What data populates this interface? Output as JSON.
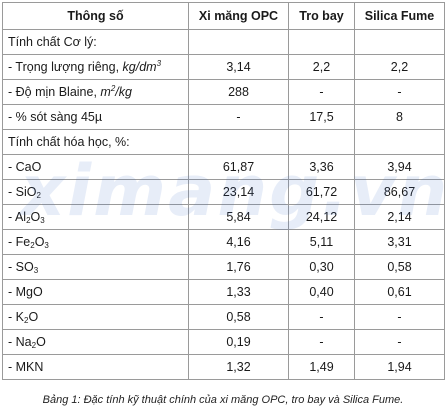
{
  "table": {
    "headers": [
      "Thông số",
      "Xi măng OPC",
      "Tro bay",
      "Silica Fume"
    ],
    "section_physical": "Tính chất Cơ lý:",
    "physical_rows": [
      {
        "label_pre": "- Trọng lượng riêng, ",
        "unit": "kg/dm",
        "unit_sup": "3",
        "values": [
          "3,14",
          "2,2",
          "2,2"
        ]
      },
      {
        "label_pre": "- Độ mịn Blaine, ",
        "unit": "m",
        "unit_sup": "2",
        "unit_post": "/kg",
        "values": [
          "288",
          "-",
          "-"
        ]
      },
      {
        "label_pre": "- % sót sàng 45µ",
        "values": [
          "-",
          "17,5",
          "8"
        ]
      }
    ],
    "section_chemical": "Tính chất hóa học, %:",
    "chemical_rows": [
      {
        "base": "- CaO",
        "values": [
          "61,87",
          "3,36",
          "3,94"
        ]
      },
      {
        "base": "- SiO",
        "sub": "2",
        "values": [
          "23,14",
          "61,72",
          "86,67"
        ]
      },
      {
        "base": "- Al",
        "sub": "2",
        "base2": "O",
        "sub2": "3",
        "values": [
          "5,84",
          "24,12",
          "2,14"
        ]
      },
      {
        "base": "- Fe",
        "sub": "2",
        "base2": "O",
        "sub2": "3",
        "values": [
          "4,16",
          "5,11",
          "3,31"
        ]
      },
      {
        "base": "- SO",
        "sub": "3",
        "values": [
          "1,76",
          "0,30",
          "0,58"
        ]
      },
      {
        "base": "- MgO",
        "values": [
          "1,33",
          "0,40",
          "0,61"
        ]
      },
      {
        "base": "- K",
        "sub": "2",
        "base2": "O",
        "values": [
          "0,58",
          "-",
          "-"
        ]
      },
      {
        "base": "- Na",
        "sub": "2",
        "base2": "O",
        "values": [
          "0,19",
          "-",
          "-"
        ]
      },
      {
        "base": "- MKN",
        "values": [
          "1,32",
          "1,49",
          "1,94"
        ]
      }
    ]
  },
  "caption": "Bảng 1: Đặc tính kỹ thuật chính của xi măng OPC, tro bay và Silica Fume.",
  "watermark": "ximang.vn"
}
